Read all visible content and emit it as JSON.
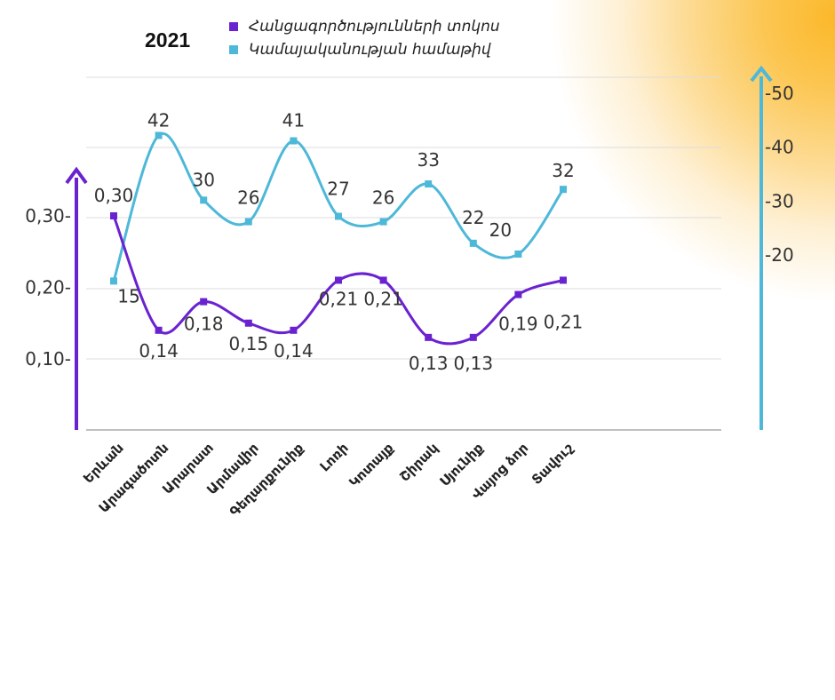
{
  "title": "2021",
  "colors": {
    "series1": "#6a22d1",
    "series2": "#4db8d8",
    "grid": "#dcdcdc",
    "text": "#333333"
  },
  "chart_data": {
    "type": "line",
    "title": "2021",
    "categories": [
      "Երևան",
      "Արագածոտն",
      "Արարատ",
      "Արմավիր",
      "Գեղարքունիք",
      "Լոռի",
      "Կոտայք",
      "Շիրակ",
      "Սյունիք",
      "Վայոց ձոր",
      "Տավուշ"
    ],
    "series": [
      {
        "name": "Հանցագործությունների տոկոս",
        "axis": "left",
        "values": [
          0.3,
          0.14,
          0.18,
          0.15,
          0.14,
          0.21,
          0.21,
          0.13,
          0.13,
          0.19,
          0.21
        ],
        "labels": [
          "0,30",
          "0,14",
          "0,18",
          "0,15",
          "0,14",
          "0,21",
          "0,21",
          "0,13",
          "0,13",
          "0,19",
          "0,21"
        ]
      },
      {
        "name": "Կամայականության համաթիվ",
        "axis": "right",
        "values": [
          15,
          42,
          30,
          26,
          41,
          27,
          26,
          33,
          22,
          20,
          32
        ],
        "labels": [
          "15",
          "42",
          "30",
          "26",
          "41",
          "27",
          "26",
          "33",
          "22",
          "20",
          "32"
        ]
      }
    ],
    "left_axis": {
      "ticks": [
        0.3,
        0.2,
        0.1
      ],
      "tick_labels": [
        "0,30-",
        "0,20-",
        "0,10-"
      ]
    },
    "right_axis": {
      "ticks": [
        50,
        40,
        30,
        20
      ],
      "tick_labels": [
        "-50",
        "-40",
        "-30",
        "-20"
      ]
    },
    "legend_position": "top",
    "grid": true,
    "smooth": true
  }
}
